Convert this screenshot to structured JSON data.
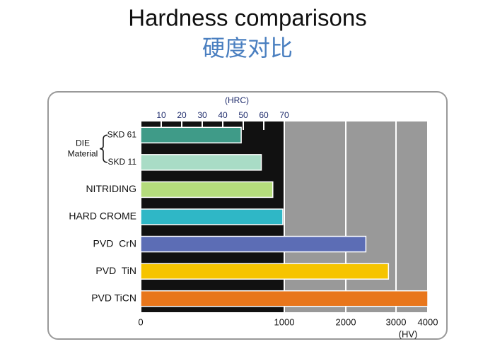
{
  "chart_data": {
    "type": "bar",
    "orientation": "horizontal",
    "title": "Hardness comparisons",
    "subtitle": "硬度对比",
    "group_label": [
      "DIE",
      "Material"
    ],
    "categories": [
      "SKD 61",
      "SKD 11",
      "NITRIDING",
      "HARD CROME",
      "PVD  CrN",
      "PVD  TiN",
      "PVD TiCN"
    ],
    "values": [
      700,
      840,
      920,
      990,
      2400,
      2850,
      4000
    ],
    "colors": [
      "#3f9b88",
      "#a9dcc6",
      "#b5dc7c",
      "#2fb7c6",
      "#5c6db5",
      "#f6c400",
      "#e8761b"
    ],
    "xlabel": "(HV)",
    "xlim": [
      0,
      4000
    ],
    "xticks": [
      0,
      1000,
      2000,
      3000,
      4000
    ],
    "x2label": "(HRC)",
    "x2lim": [
      0,
      70
    ],
    "x2ticks": [
      10,
      20,
      30,
      40,
      50,
      60,
      70
    ]
  }
}
